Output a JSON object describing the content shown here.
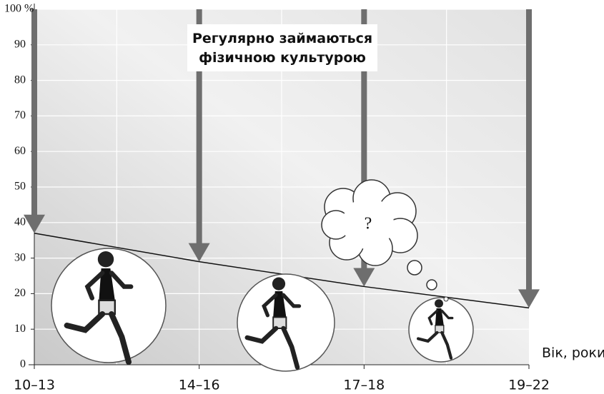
{
  "chart_data": {
    "type": "line",
    "title": "Регулярно займаються фізичною культурою",
    "x_label": "Вік, роки",
    "annotation": "?",
    "categories": [
      "10–13",
      "14–16",
      "17–18",
      "19–22"
    ],
    "values": [
      37,
      29,
      22,
      16
    ],
    "color": "#111111",
    "ylim": [
      0,
      100
    ],
    "yticks": [
      0,
      10,
      20,
      30,
      40,
      50,
      60,
      70,
      80,
      90,
      {
        "value": 100,
        "label": "100 %"
      }
    ],
    "grid": true
  }
}
